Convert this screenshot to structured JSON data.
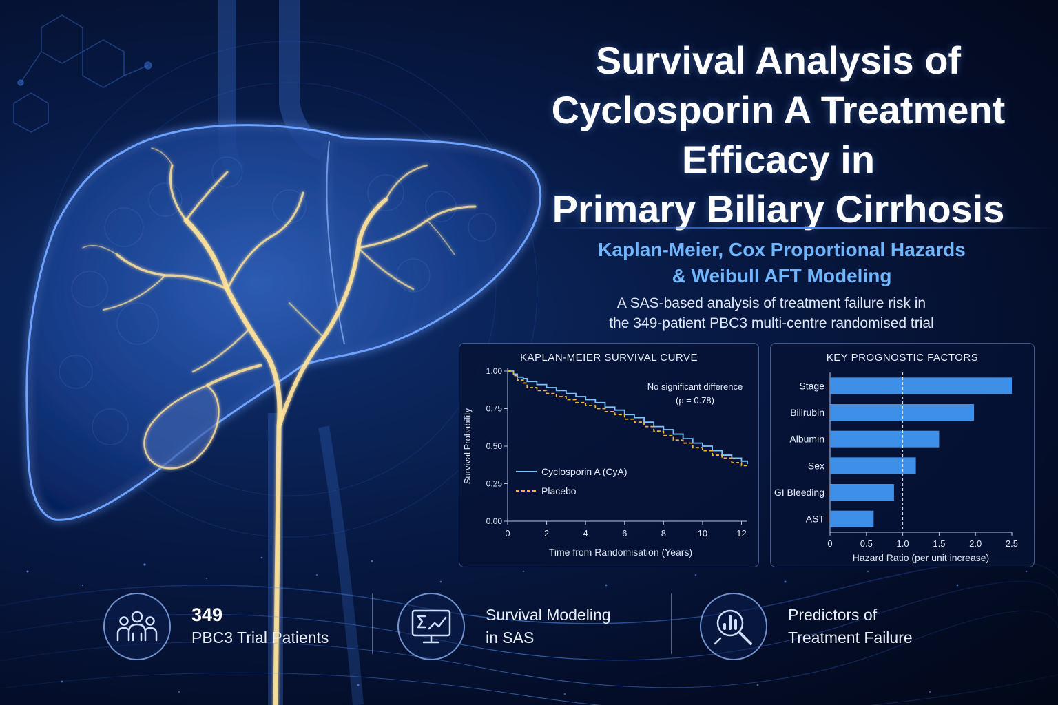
{
  "header": {
    "title_lines": [
      "Survival Analysis of",
      "Cyclosporin A Treatment",
      "Efficacy in",
      "Primary Biliary Cirrhosis"
    ],
    "subtitle_lines": [
      "Kaplan-Meier, Cox Proportional Hazards",
      "& Weibull AFT Modeling"
    ],
    "description_lines": [
      "A SAS-based analysis of treatment failure risk in",
      "the 349-patient PBC3 multi-centre randomised trial"
    ]
  },
  "colors": {
    "accent_blue": "#6fb6ff",
    "cya_line": "#7cc4ff",
    "placebo_line": "#f2b630",
    "bar": "#3d8fe8",
    "liver_glow": "#3a78ff",
    "vessel": "#ffe39a"
  },
  "illustration": {
    "icons": [
      "liver-illustration-icon",
      "bile-duct-icon",
      "gallbladder-icon",
      "molecule-icon"
    ]
  },
  "chart_data": [
    {
      "type": "line",
      "title": "KAPLAN-MEIER SURVIVAL CURVE",
      "xlabel": "Time from Randomisation (Years)",
      "ylabel": "Survival Probability",
      "xlim": [
        0,
        12.3
      ],
      "ylim": [
        0,
        1
      ],
      "xticks": [
        0,
        2,
        4,
        6,
        8,
        10,
        12
      ],
      "yticks": [
        0,
        0.25,
        0.5,
        0.75,
        1.0
      ],
      "ytick_labels": [
        "0.00",
        "0.25",
        "0.50",
        "0.75",
        "1.00"
      ],
      "grid": false,
      "legend_position": "bottom-left",
      "annotation_lines": [
        "No significant difference",
        "(p = 0.78)"
      ],
      "series": [
        {
          "name": "Cyclosporin A (CyA)",
          "style": "solid",
          "x": [
            0,
            0.3,
            0.5,
            0.8,
            1.0,
            1.5,
            2.0,
            2.5,
            3.0,
            3.5,
            4.0,
            4.5,
            5.0,
            5.5,
            6.0,
            6.5,
            7.0,
            7.5,
            8.0,
            8.5,
            9.0,
            9.5,
            10.0,
            10.5,
            11.0,
            11.5,
            12.0,
            12.3
          ],
          "y": [
            1.0,
            0.98,
            0.96,
            0.95,
            0.93,
            0.91,
            0.89,
            0.87,
            0.85,
            0.83,
            0.81,
            0.79,
            0.76,
            0.74,
            0.71,
            0.69,
            0.66,
            0.63,
            0.61,
            0.58,
            0.55,
            0.52,
            0.5,
            0.47,
            0.44,
            0.42,
            0.4,
            0.38
          ]
        },
        {
          "name": "Placebo",
          "style": "dashed",
          "x": [
            0,
            0.3,
            0.5,
            0.8,
            1.0,
            1.5,
            2.0,
            2.5,
            3.0,
            3.5,
            4.0,
            4.5,
            5.0,
            5.5,
            6.0,
            6.5,
            7.0,
            7.5,
            8.0,
            8.5,
            9.0,
            9.5,
            10.0,
            10.5,
            11.0,
            11.5,
            12.0,
            12.3
          ],
          "y": [
            1.0,
            0.97,
            0.94,
            0.92,
            0.89,
            0.87,
            0.85,
            0.83,
            0.81,
            0.79,
            0.77,
            0.75,
            0.73,
            0.71,
            0.68,
            0.66,
            0.63,
            0.6,
            0.57,
            0.54,
            0.52,
            0.49,
            0.47,
            0.44,
            0.42,
            0.39,
            0.37,
            0.36
          ]
        }
      ]
    },
    {
      "type": "bar",
      "orientation": "horizontal",
      "title": "KEY PROGNOSTIC FACTORS",
      "xlabel": "Hazard Ratio (per unit increase)",
      "categories": [
        "Stage",
        "Bilirubin",
        "Albumin",
        "Sex",
        "GI Bleeding",
        "AST"
      ],
      "values": [
        2.5,
        1.98,
        1.5,
        1.18,
        0.88,
        0.6
      ],
      "xlim": [
        0,
        2.5
      ],
      "xticks": [
        0,
        0.5,
        1,
        1.5,
        2,
        2.5
      ],
      "xtick_labels": [
        "0",
        "0.5",
        "1.0",
        "1.5",
        "2.0",
        "2.5"
      ],
      "reference_line": 1.0,
      "grid": false
    }
  ],
  "stats": [
    {
      "value": "349",
      "label": "PBC3 Trial Patients",
      "icon": "patients-group-icon"
    },
    {
      "label_lines": [
        "Survival Modeling",
        "in SAS"
      ],
      "icon": "analytics-monitor-icon"
    },
    {
      "label_lines": [
        "Predictors of",
        "Treatment Failure"
      ],
      "icon": "magnifier-chart-icon"
    }
  ]
}
